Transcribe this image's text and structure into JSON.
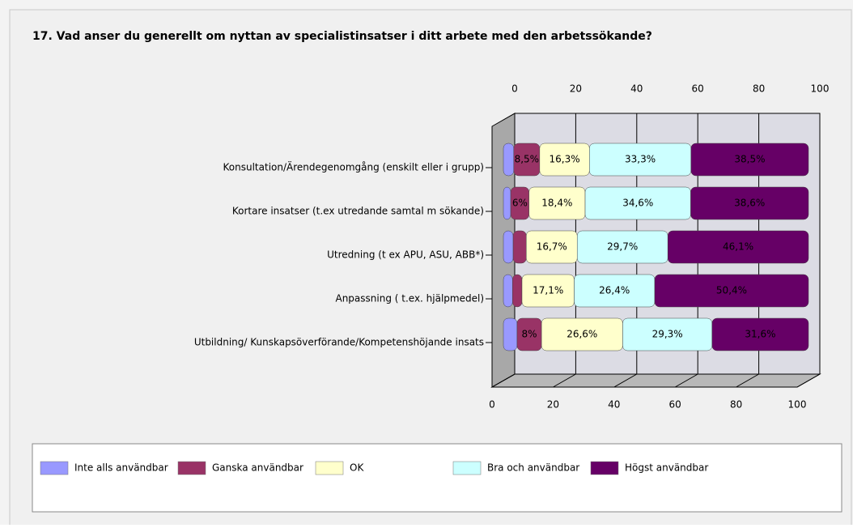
{
  "chart_data": {
    "type": "bar",
    "orientation": "horizontal",
    "stacked": true,
    "title": "17. Vad anser du generellt om nyttan av specialistinsatser i ditt arbete med den arbetssökande?",
    "categories": [
      "Konsultation/Ärendegenomgång (enskilt eller i grupp)",
      "Kortare insatser (t.ex utredande samtal m sökande)",
      "Utredning (t ex APU, ASU, ABB*)",
      "Anpassning ( t.ex. hjälpmedel)",
      "Utbildning/ Kunskapsöverförande/Kompetenshöjande insats"
    ],
    "series": [
      {
        "name": "Inte alls användbar",
        "color": "#9999ff",
        "values": [
          3.4,
          2.4,
          3.2,
          3,
          4.5
        ],
        "value_labels": [
          null,
          null,
          null,
          null,
          null
        ]
      },
      {
        "name": "Ganska användbar",
        "color": "#993366",
        "values": [
          8.5,
          6,
          4.3,
          3.1,
          8
        ],
        "value_labels": [
          "8,5%",
          "6%",
          null,
          null,
          "8%"
        ]
      },
      {
        "name": "OK",
        "color": "#ffffcc",
        "values": [
          16.3,
          18.4,
          16.7,
          17.1,
          26.6
        ],
        "value_labels": [
          "16,3%",
          "18,4%",
          "16,7%",
          "17,1%",
          "26,6%"
        ]
      },
      {
        "name": "Bra och användbar",
        "color": "#ccffff",
        "values": [
          33.3,
          34.6,
          29.7,
          26.4,
          29.3
        ],
        "value_labels": [
          "33,3%",
          "34,6%",
          "29,7%",
          "26,4%",
          "29,3%"
        ]
      },
      {
        "name": "Högst  användbar",
        "color": "#660066",
        "values": [
          38.5,
          38.6,
          46.1,
          50.4,
          31.6
        ],
        "value_labels": [
          "38,5%",
          "38,6%",
          "46,1%",
          "50,4%",
          "31,6%"
        ]
      }
    ],
    "xlim": [
      0,
      100
    ],
    "xticks": [
      0,
      20,
      40,
      60,
      80,
      100
    ],
    "grid": true,
    "legend": "bottom"
  }
}
